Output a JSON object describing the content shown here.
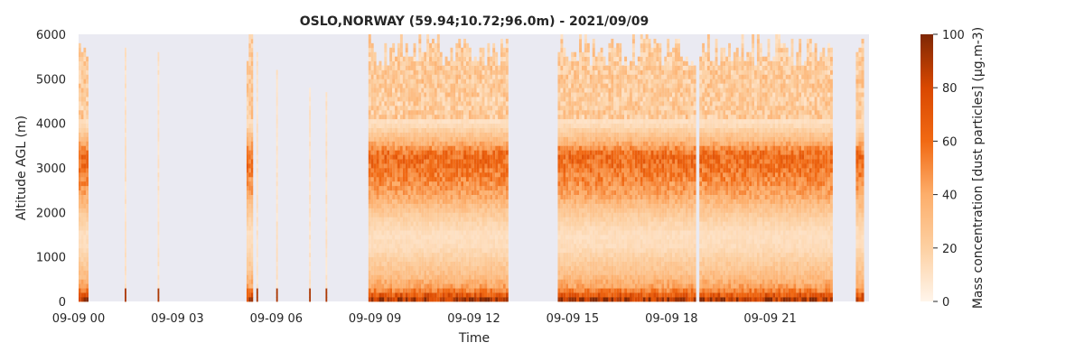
{
  "chart_data": {
    "type": "heatmap",
    "title": "OSLO,NORWAY (59.94;10.72;96.0m) - 2021/09/09",
    "xlabel": "Time",
    "ylabel": "Altitude AGL (m)",
    "colorbar_label": "Mass concentration [dust particles] (µg.m-3)",
    "colormap": "Oranges",
    "colors": {
      "background": "#eaeaf2",
      "low": "#fff5eb",
      "mid": "#fd8d3c",
      "high": "#7f2704"
    },
    "xlim": [
      0,
      24
    ],
    "ylim": [
      0,
      6000
    ],
    "clim": [
      0,
      100
    ],
    "x_ticks": [
      0,
      3,
      6,
      9,
      12,
      15,
      18,
      21
    ],
    "x_tick_labels": [
      "09-09 00",
      "09-09 03",
      "09-09 06",
      "09-09 09",
      "09-09 12",
      "09-09 15",
      "09-09 18",
      "09-09 21"
    ],
    "y_ticks": [
      0,
      1000,
      2000,
      3000,
      4000,
      5000,
      6000
    ],
    "y_tick_labels": [
      "0",
      "1000",
      "2000",
      "3000",
      "4000",
      "5000",
      "6000"
    ],
    "c_ticks": [
      0,
      20,
      40,
      60,
      80,
      100
    ],
    "c_tick_labels": [
      "0",
      "20",
      "40",
      "60",
      "80",
      "100"
    ],
    "altitude_profile": {
      "altitude_m": [
        0,
        300,
        600,
        900,
        1200,
        1500,
        1800,
        2100,
        2400,
        2700,
        3000,
        3300,
        3600,
        4000,
        4500,
        5000,
        5500,
        6000
      ],
      "concentration": [
        95,
        45,
        30,
        22,
        14,
        12,
        18,
        28,
        42,
        50,
        58,
        62,
        35,
        12,
        10,
        12,
        10,
        8
      ]
    },
    "data_coverage_hours": [
      [
        0.0,
        0.3
      ],
      [
        1.4,
        1.45
      ],
      [
        2.4,
        2.45
      ],
      [
        5.1,
        5.3
      ],
      [
        5.4,
        5.45
      ],
      [
        6.0,
        6.05
      ],
      [
        7.0,
        7.05
      ],
      [
        7.5,
        7.55
      ],
      [
        8.8,
        13.05
      ],
      [
        14.55,
        18.75
      ],
      [
        18.85,
        22.9
      ],
      [
        23.6,
        23.85
      ]
    ]
  }
}
